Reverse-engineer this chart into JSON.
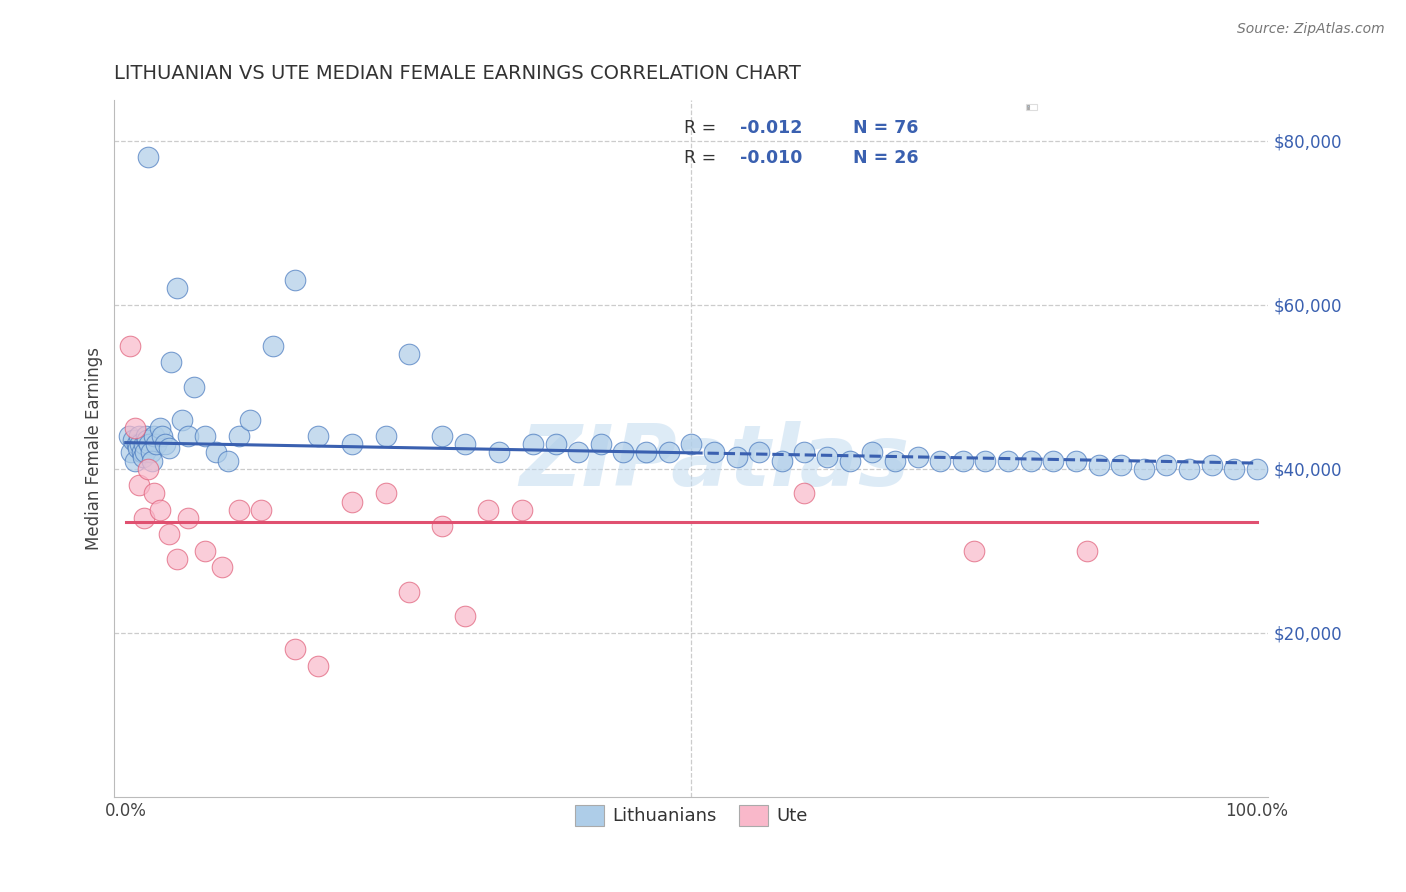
{
  "title": "LITHUANIAN VS UTE MEDIAN FEMALE EARNINGS CORRELATION CHART",
  "source": "Source: ZipAtlas.com",
  "ylabel": "Median Female Earnings",
  "xlim": [
    -1,
    101
  ],
  "ylim": [
    0,
    85000
  ],
  "yticks": [
    20000,
    40000,
    60000,
    80000
  ],
  "ytick_labels": [
    "$20,000",
    "$40,000",
    "$60,000",
    "$80,000"
  ],
  "legend_r1": "R = ",
  "legend_v1": "-0.012",
  "legend_n1": "N = 76",
  "legend_r2": "R = ",
  "legend_v2": "-0.010",
  "legend_n2": "N = 26",
  "legend_label1": "Lithuanians",
  "legend_label2": "Ute",
  "watermark": "ZIPatlas",
  "blue_fill": "#aecde8",
  "pink_fill": "#f9b8ca",
  "blue_edge": "#4a7abf",
  "pink_edge": "#e0607a",
  "blue_line": "#3a60b0",
  "pink_line": "#e05070",
  "accent_blue": "#3a60b0",
  "grid_color": "#cccccc",
  "bg_color": "#ffffff",
  "title_color": "#333333",
  "ytick_color": "#3a60b0",
  "lit_intercept": 43200,
  "lit_slope": -25,
  "ute_intercept": 33500,
  "ute_slope": 0,
  "lit_x": [
    0.3,
    0.5,
    0.6,
    0.8,
    1.0,
    1.1,
    1.2,
    1.3,
    1.4,
    1.5,
    1.6,
    1.7,
    1.8,
    1.9,
    2.0,
    2.1,
    2.2,
    2.3,
    2.5,
    2.7,
    3.0,
    3.2,
    3.5,
    3.8,
    4.0,
    4.5,
    5.0,
    5.5,
    6.0,
    7.0,
    8.0,
    9.0,
    10.0,
    11.0,
    13.0,
    15.0,
    17.0,
    20.0,
    23.0,
    25.0,
    28.0,
    30.0,
    33.0,
    36.0,
    38.0,
    40.0,
    42.0,
    44.0,
    46.0,
    48.0,
    50.0,
    52.0,
    54.0,
    56.0,
    58.0,
    60.0,
    62.0,
    64.0,
    66.0,
    68.0,
    70.0,
    72.0,
    74.0,
    76.0,
    78.0,
    80.0,
    82.0,
    84.0,
    86.0,
    88.0,
    90.0,
    92.0,
    94.0,
    96.0,
    98.0,
    100.0
  ],
  "lit_y": [
    44000,
    42000,
    43500,
    41000,
    43000,
    42500,
    44000,
    43000,
    42000,
    41500,
    43000,
    42000,
    44000,
    43500,
    78000,
    43000,
    42000,
    41000,
    44000,
    43000,
    45000,
    44000,
    43000,
    42500,
    53000,
    62000,
    46000,
    44000,
    50000,
    44000,
    42000,
    41000,
    44000,
    46000,
    55000,
    63000,
    44000,
    43000,
    44000,
    54000,
    44000,
    43000,
    42000,
    43000,
    43000,
    42000,
    43000,
    42000,
    42000,
    42000,
    43000,
    42000,
    41500,
    42000,
    41000,
    42000,
    41500,
    41000,
    42000,
    41000,
    41500,
    41000,
    41000,
    41000,
    41000,
    41000,
    41000,
    41000,
    40500,
    40500,
    40000,
    40500,
    40000,
    40500,
    40000,
    40000
  ],
  "ute_x": [
    0.4,
    0.8,
    1.2,
    1.6,
    2.0,
    2.5,
    3.0,
    3.8,
    4.5,
    5.5,
    7.0,
    8.5,
    10.0,
    12.0,
    15.0,
    17.0,
    20.0,
    23.0,
    25.0,
    28.0,
    30.0,
    32.0,
    35.0,
    60.0,
    75.0,
    85.0
  ],
  "ute_y": [
    55000,
    45000,
    38000,
    34000,
    40000,
    37000,
    35000,
    32000,
    29000,
    34000,
    30000,
    28000,
    35000,
    35000,
    18000,
    16000,
    36000,
    37000,
    25000,
    33000,
    22000,
    35000,
    35000,
    37000,
    30000,
    30000
  ]
}
